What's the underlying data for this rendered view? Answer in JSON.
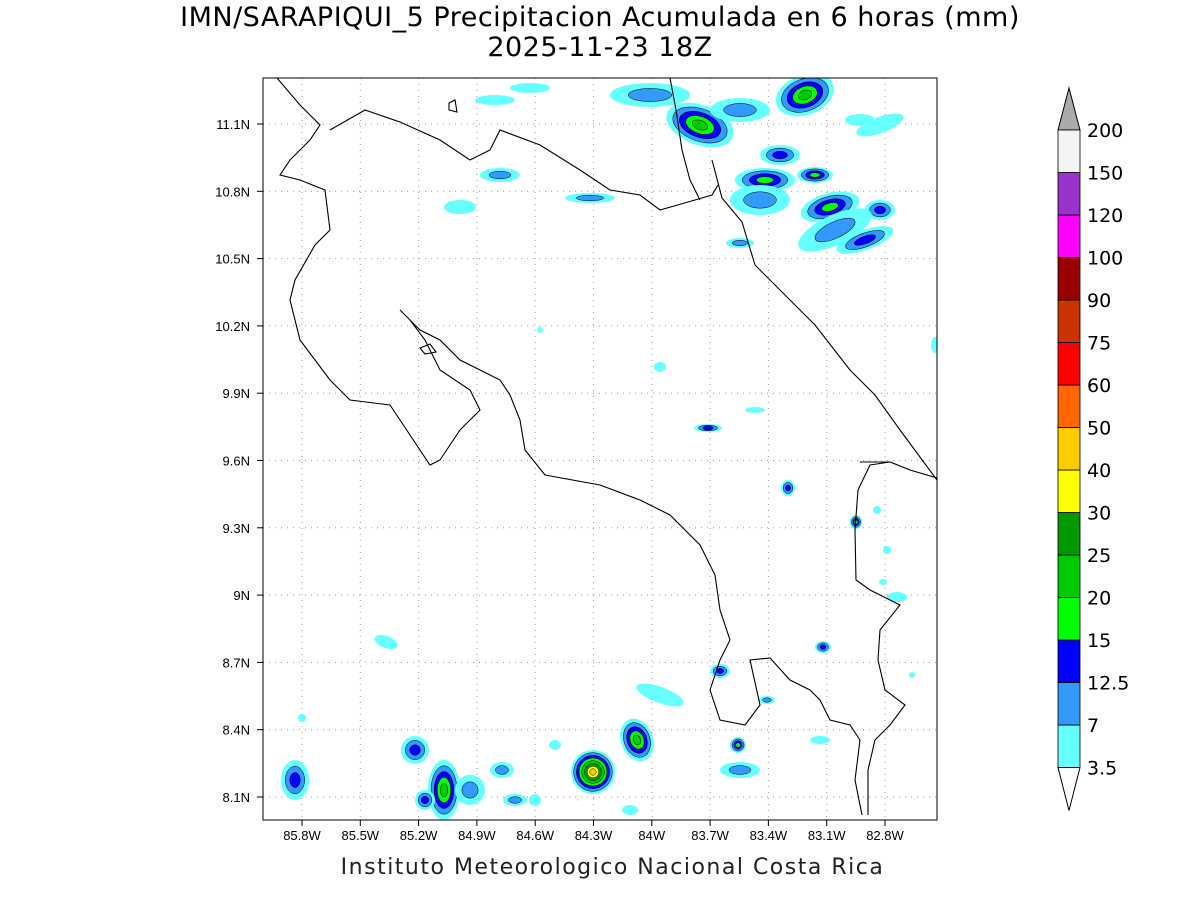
{
  "title": {
    "line1": "IMN/SARAPIQUI_5 Precipitacion Acumulada en 6 horas (mm)",
    "line2": "2025-11-23 18Z"
  },
  "map": {
    "lon_labels": [
      "85.8W",
      "85.5W",
      "85.2W",
      "84.9W",
      "84.6W",
      "84.3W",
      "84W",
      "83.7W",
      "83.4W",
      "83.1W",
      "82.8W"
    ],
    "lat_labels": [
      "11.1N",
      "10.8N",
      "10.5N",
      "10.2N",
      "9.9N",
      "9.6N",
      "9.3N",
      "9N",
      "8.7N",
      "8.4N",
      "8.1N"
    ]
  },
  "colorbar": {
    "levels": [
      "3.5",
      "7",
      "12.5",
      "15",
      "20",
      "25",
      "30",
      "40",
      "50",
      "60",
      "75",
      "90",
      "100",
      "120",
      "150",
      "200"
    ],
    "colors": [
      "#66ffff",
      "#3399ff",
      "#0000ff",
      "#00ff00",
      "#00cc00",
      "#009900",
      "#ffff00",
      "#ffcc00",
      "#ff6600",
      "#ff0000",
      "#cc3300",
      "#990000",
      "#ff00ff",
      "#9933cc",
      "#f4f4f4"
    ],
    "over_color": "#aaaaaa",
    "under_color": "#ffffff"
  },
  "footer": "Instituto Meteorologico Nacional Costa Rica"
}
